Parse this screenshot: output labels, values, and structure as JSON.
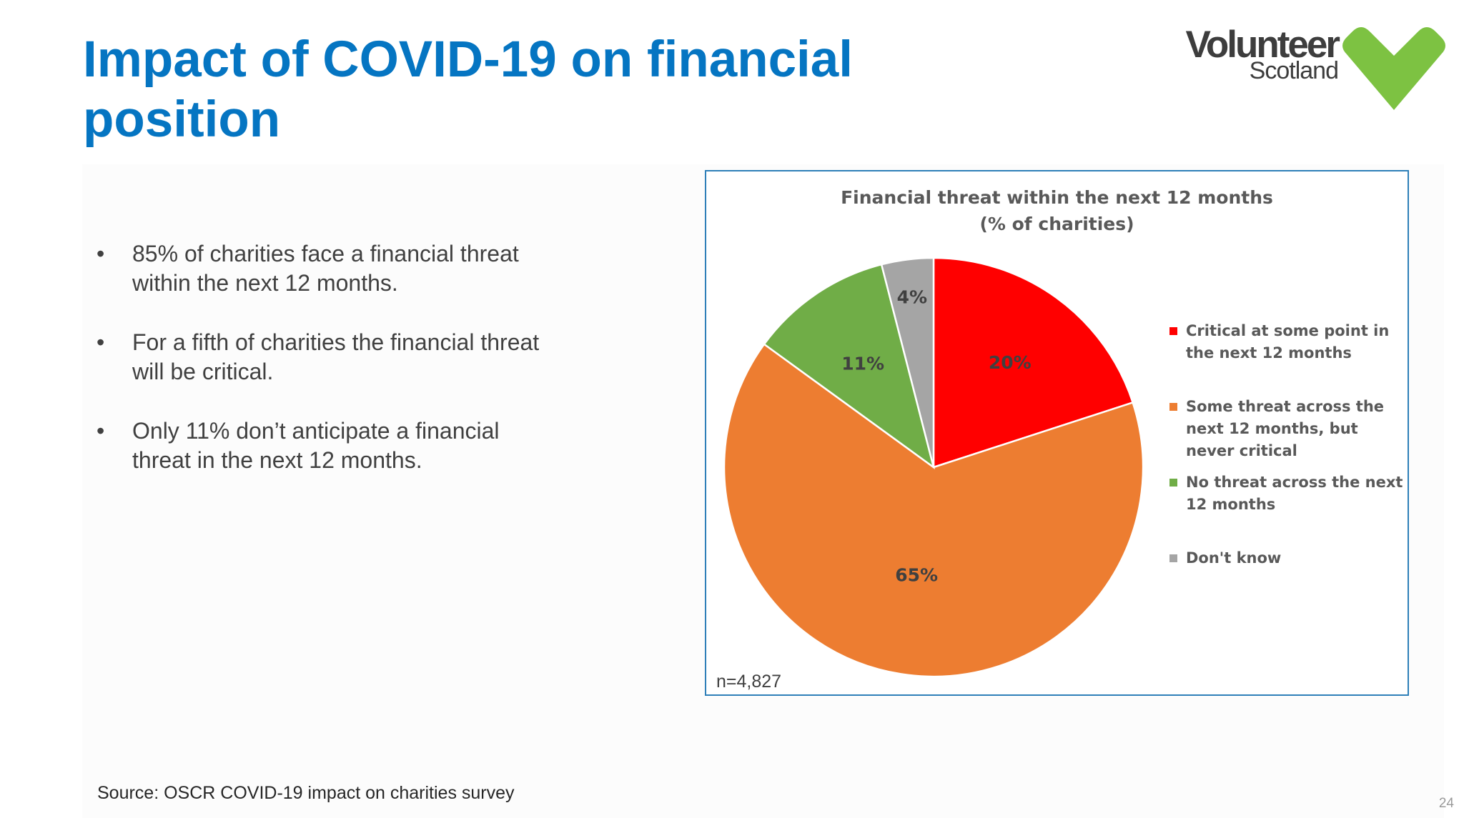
{
  "slide": {
    "title": "Impact of COVID-19 on financial position",
    "page_number": "24",
    "source": "Source: OSCR COVID-19 impact on charities survey"
  },
  "logo": {
    "line1": "Volunteer",
    "line2": "Scotland",
    "heart_color": "#7dc242"
  },
  "bullets": [
    {
      "marker": "•",
      "text": "85% of charities face a financial threat within the next 12 months."
    },
    {
      "marker": "•",
      "text": "For a fifth of charities the financial threat will be critical."
    },
    {
      "marker": "•",
      "text": "Only 11% don’t anticipate a financial threat in the next 12 months."
    }
  ],
  "chart_data": {
    "type": "pie",
    "title_line1": "Financial threat within the next 12 months",
    "title_line2": "(% of charities)",
    "note": "n=4,827",
    "legend_position": "right",
    "slices": [
      {
        "label": "Critical at some point in the next 12 months",
        "value": 20,
        "data_label": "20%",
        "color": "#ff0000"
      },
      {
        "label": "Some threat across the next 12 months, but never critical",
        "value": 65,
        "data_label": "65%",
        "color": "#ed7d31"
      },
      {
        "label": "No threat across the next 12 months",
        "value": 11,
        "data_label": "11%",
        "color": "#70ad47"
      },
      {
        "label": "Don't know",
        "value": 4,
        "data_label": "4%",
        "color": "#a5a5a5"
      }
    ]
  }
}
